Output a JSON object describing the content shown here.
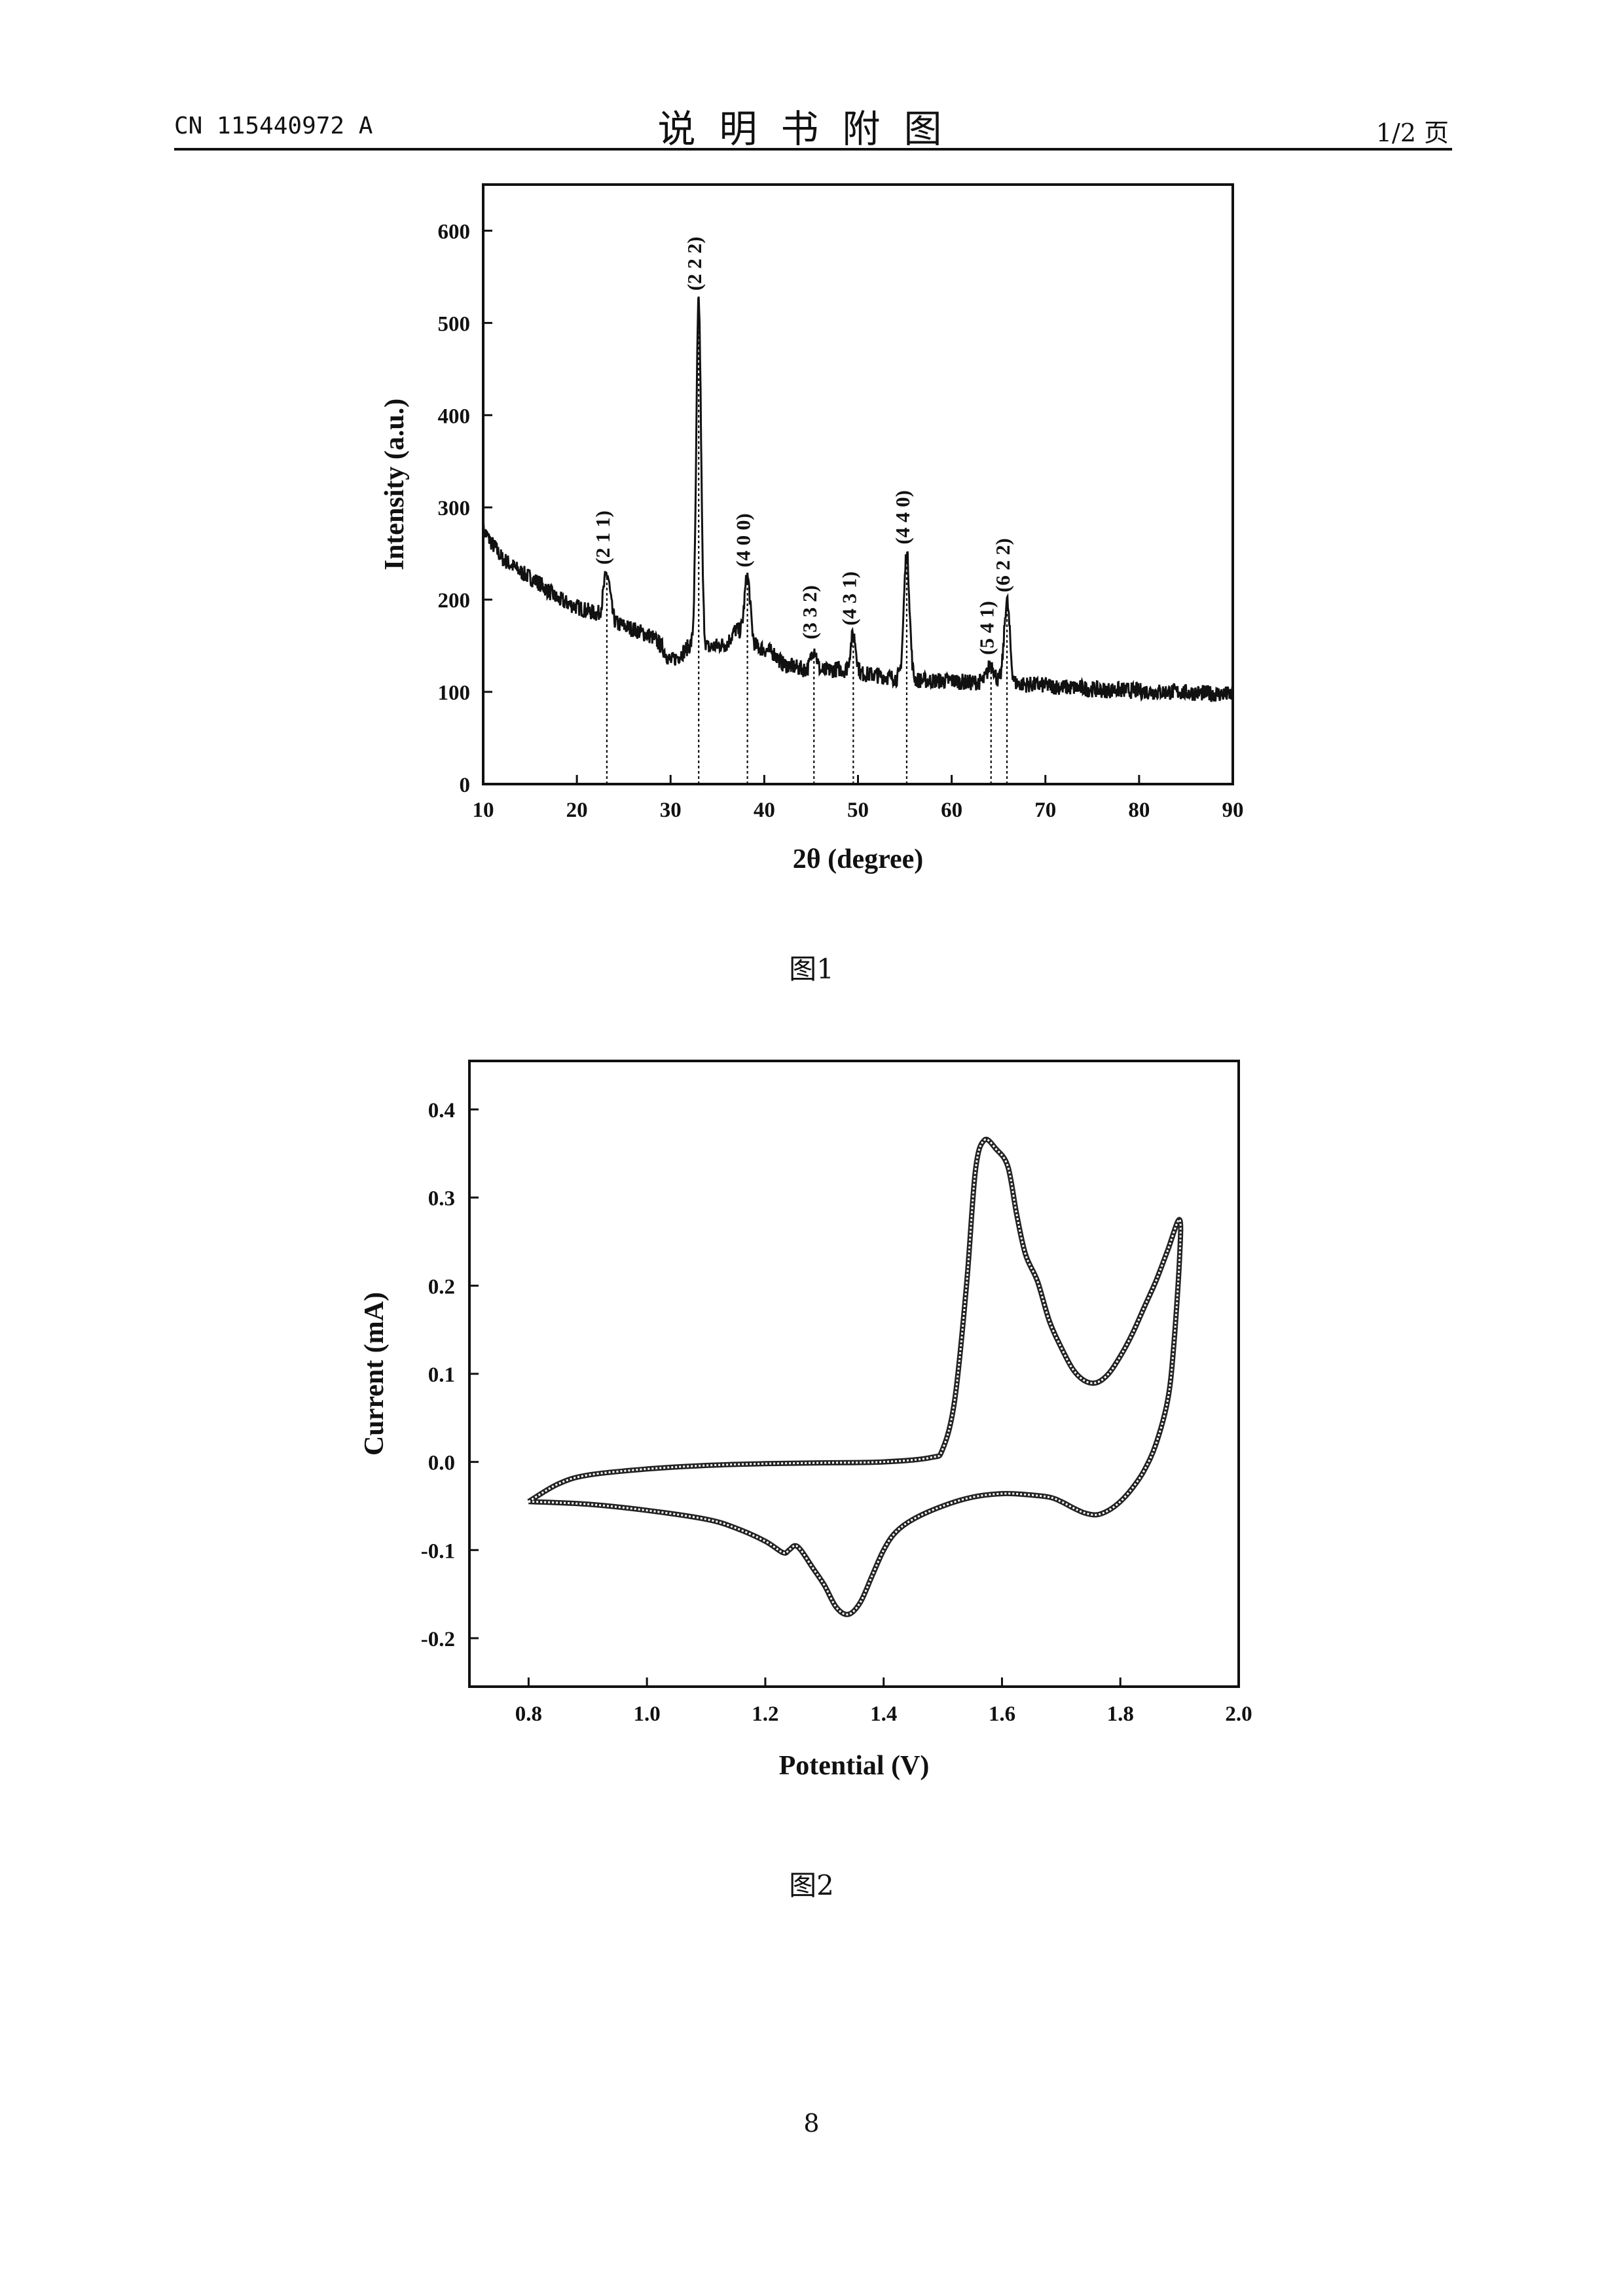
{
  "header": {
    "publication_number": "CN 115440972 A",
    "section_title": "说明书附图",
    "page_indicator": "1/2 页"
  },
  "figures": [
    {
      "caption": "图1"
    },
    {
      "caption": "图2"
    }
  ],
  "page_number": "8",
  "colors": {
    "ink": "#111111",
    "background": "#ffffff",
    "curve": "#222222"
  },
  "chart_data": [
    {
      "type": "line",
      "xlabel": "2θ (degree)",
      "ylabel": "Intensity (a.u.)",
      "xlim": [
        10,
        90
      ],
      "ylim": [
        0,
        650
      ],
      "xticks": [
        10,
        20,
        30,
        40,
        50,
        60,
        70,
        80,
        90
      ],
      "yticks": [
        0,
        100,
        200,
        300,
        400,
        500,
        600
      ],
      "grid": false,
      "baseline": [
        [
          10,
          275
        ],
        [
          12,
          245
        ],
        [
          14,
          230
        ],
        [
          16,
          218
        ],
        [
          18,
          200
        ],
        [
          20,
          192
        ],
        [
          22,
          185
        ],
        [
          24,
          175
        ],
        [
          26,
          168
        ],
        [
          28,
          160
        ],
        [
          29,
          150
        ],
        [
          30,
          133
        ],
        [
          31,
          140
        ],
        [
          32,
          150
        ],
        [
          33,
          155
        ],
        [
          34,
          148
        ],
        [
          35,
          150
        ],
        [
          36,
          152
        ],
        [
          37,
          168
        ],
        [
          38,
          160
        ],
        [
          39,
          150
        ],
        [
          40,
          146
        ],
        [
          41,
          142
        ],
        [
          42,
          130
        ],
        [
          44,
          125
        ],
        [
          46,
          122
        ],
        [
          48,
          125
        ],
        [
          50,
          120
        ],
        [
          52,
          118
        ],
        [
          54,
          115
        ],
        [
          56,
          113
        ],
        [
          58,
          112
        ],
        [
          60,
          112
        ],
        [
          62,
          110
        ],
        [
          64,
          112
        ],
        [
          66,
          110
        ],
        [
          68,
          108
        ],
        [
          70,
          107
        ],
        [
          72,
          105
        ],
        [
          74,
          104
        ],
        [
          76,
          102
        ],
        [
          78,
          102
        ],
        [
          80,
          101
        ],
        [
          82,
          100
        ],
        [
          84,
          100
        ],
        [
          86,
          99
        ],
        [
          88,
          98
        ],
        [
          90,
          97
        ]
      ],
      "peaks": [
        {
          "label": "(2 1 1)",
          "x": 23.2,
          "y": 228,
          "width": 0.35
        },
        {
          "label": "(2 2 2)",
          "x": 33.0,
          "y": 525,
          "width": 0.25
        },
        {
          "label": "(4 0 0)",
          "x": 38.2,
          "y": 225,
          "width": 0.3
        },
        {
          "label": "(3 3 2)",
          "x": 45.3,
          "y": 147,
          "width": 0.3
        },
        {
          "label": "(4 3 1)",
          "x": 49.5,
          "y": 162,
          "width": 0.3
        },
        {
          "label": "(4 4 0)",
          "x": 55.2,
          "y": 250,
          "width": 0.3
        },
        {
          "label": "(5 4 1)",
          "x": 64.2,
          "y": 130,
          "width": 0.35
        },
        {
          "label": "(6 2 2)",
          "x": 65.9,
          "y": 198,
          "width": 0.3
        }
      ]
    },
    {
      "type": "line",
      "xlabel": "Potential (V)",
      "ylabel": "Current (mA)",
      "xlim": [
        0.7,
        2.0
      ],
      "ylim": [
        -0.255,
        0.455
      ],
      "xticks": [
        "0.8",
        "1.0",
        "1.2",
        "1.4",
        "1.6",
        "1.8",
        "2.0"
      ],
      "yticks": [
        "-0.2",
        "-0.1",
        "0.0",
        "0.1",
        "0.2",
        "0.3",
        "0.4"
      ],
      "grid": false,
      "series": [
        {
          "values": [
            [
              0.8,
              -0.045
            ],
            [
              0.85,
              -0.025
            ],
            [
              0.9,
              -0.015
            ],
            [
              1.0,
              -0.008
            ],
            [
              1.1,
              -0.004
            ],
            [
              1.2,
              -0.002
            ],
            [
              1.3,
              -0.001
            ],
            [
              1.4,
              0.0
            ],
            [
              1.48,
              0.005
            ],
            [
              1.5,
              0.015
            ],
            [
              1.52,
              0.07
            ],
            [
              1.54,
              0.2
            ],
            [
              1.555,
              0.33
            ],
            [
              1.57,
              0.365
            ],
            [
              1.59,
              0.355
            ],
            [
              1.61,
              0.335
            ],
            [
              1.625,
              0.28
            ],
            [
              1.64,
              0.235
            ],
            [
              1.66,
              0.205
            ],
            [
              1.68,
              0.16
            ],
            [
              1.7,
              0.13
            ],
            [
              1.72,
              0.105
            ],
            [
              1.74,
              0.092
            ],
            [
              1.76,
              0.09
            ],
            [
              1.78,
              0.1
            ],
            [
              1.8,
              0.12
            ],
            [
              1.82,
              0.145
            ],
            [
              1.84,
              0.175
            ],
            [
              1.86,
              0.205
            ],
            [
              1.88,
              0.24
            ],
            [
              1.9,
              0.275
            ],
            [
              1.9,
              0.23
            ],
            [
              1.89,
              0.13
            ],
            [
              1.88,
              0.07
            ],
            [
              1.86,
              0.02
            ],
            [
              1.84,
              -0.01
            ],
            [
              1.82,
              -0.03
            ],
            [
              1.8,
              -0.045
            ],
            [
              1.78,
              -0.055
            ],
            [
              1.76,
              -0.06
            ],
            [
              1.74,
              -0.058
            ],
            [
              1.72,
              -0.052
            ],
            [
              1.7,
              -0.045
            ],
            [
              1.68,
              -0.04
            ],
            [
              1.64,
              -0.037
            ],
            [
              1.6,
              -0.036
            ],
            [
              1.55,
              -0.04
            ],
            [
              1.5,
              -0.05
            ],
            [
              1.45,
              -0.065
            ],
            [
              1.42,
              -0.08
            ],
            [
              1.4,
              -0.1
            ],
            [
              1.38,
              -0.13
            ],
            [
              1.36,
              -0.16
            ],
            [
              1.34,
              -0.173
            ],
            [
              1.32,
              -0.165
            ],
            [
              1.3,
              -0.14
            ],
            [
              1.28,
              -0.12
            ],
            [
              1.26,
              -0.1
            ],
            [
              1.25,
              -0.095
            ],
            [
              1.24,
              -0.1
            ],
            [
              1.23,
              -0.103
            ],
            [
              1.2,
              -0.09
            ],
            [
              1.15,
              -0.075
            ],
            [
              1.1,
              -0.065
            ],
            [
              1.0,
              -0.055
            ],
            [
              0.9,
              -0.048
            ],
            [
              0.8,
              -0.045
            ]
          ]
        }
      ]
    }
  ]
}
